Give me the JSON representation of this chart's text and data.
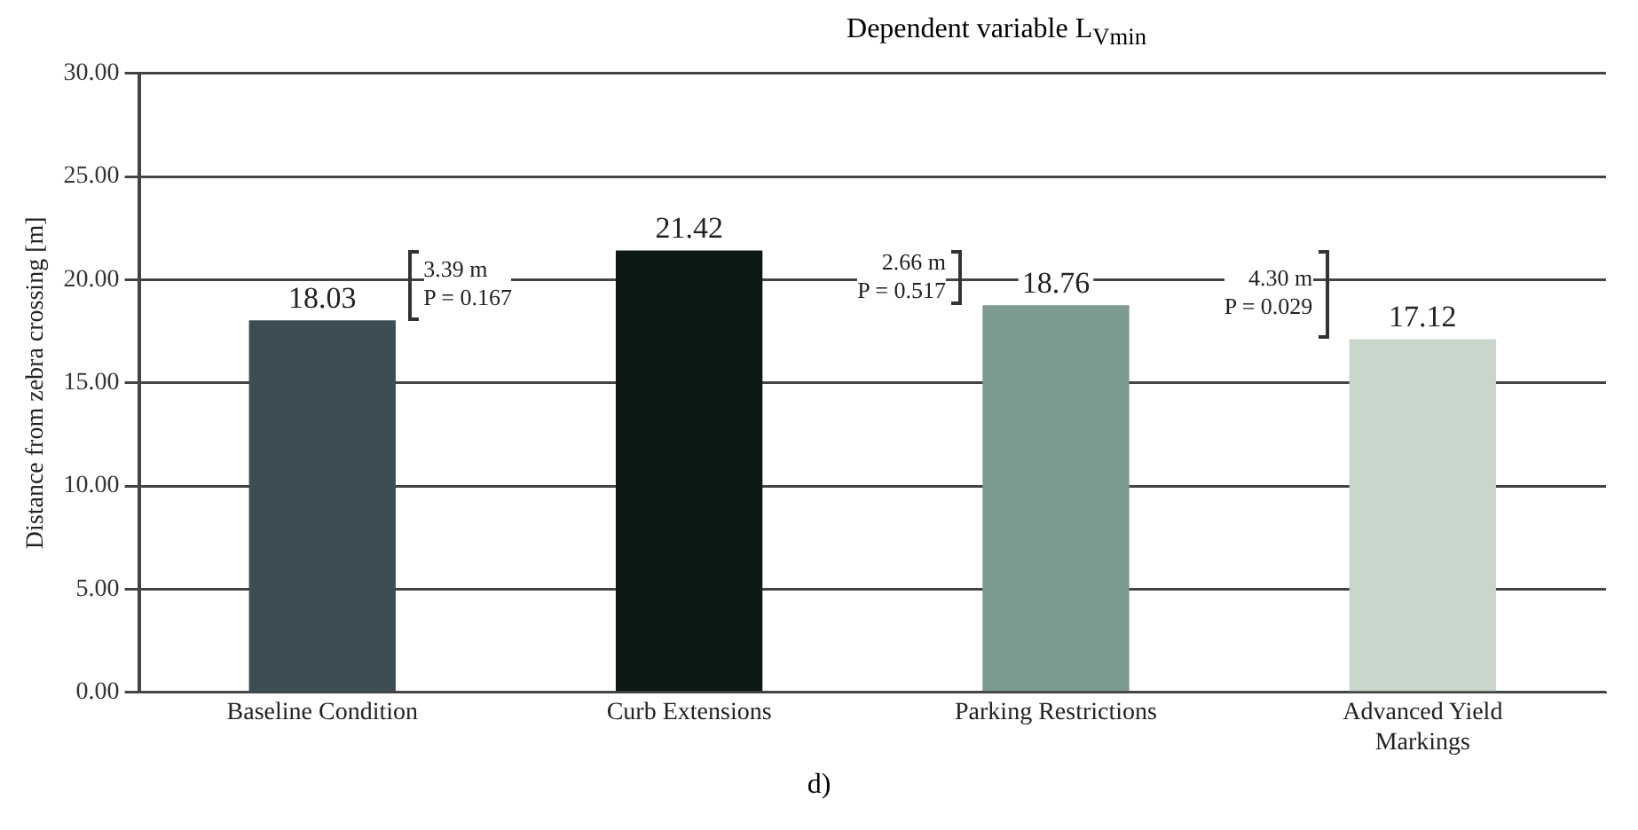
{
  "chart_data": {
    "type": "bar",
    "title": "Dependent variable L$_{Vmin}$",
    "ylabel": "Distance from zebra crossing [m]",
    "categories": [
      "Baseline Condition",
      "Curb Extensions",
      "Parking Restrictions",
      "Advanced Yield Markings"
    ],
    "values": [
      18.03,
      21.42,
      18.76,
      17.12
    ],
    "colors": [
      "#3d4d55",
      "#0d1a14",
      "#7d9a90",
      "#c8d6cc"
    ],
    "ylim": [
      0,
      30
    ],
    "yticks": [
      {
        "value": 0,
        "label": "0.00"
      },
      {
        "value": 5,
        "label": "5.00"
      },
      {
        "value": 10,
        "label": "10.00"
      },
      {
        "value": 15,
        "label": "15.00"
      },
      {
        "value": 20,
        "label": "20.00"
      },
      {
        "value": 25,
        "label": "25.00"
      },
      {
        "value": 30,
        "label": "30.00"
      }
    ],
    "grid": "y",
    "legend": false,
    "data_labels": true,
    "annotations": [
      "3.39 m",
      "P = 0.167",
      "2.66 m",
      "P = 0.517",
      "4.30 m",
      "P = 0.029",
      "d)"
    ]
  }
}
